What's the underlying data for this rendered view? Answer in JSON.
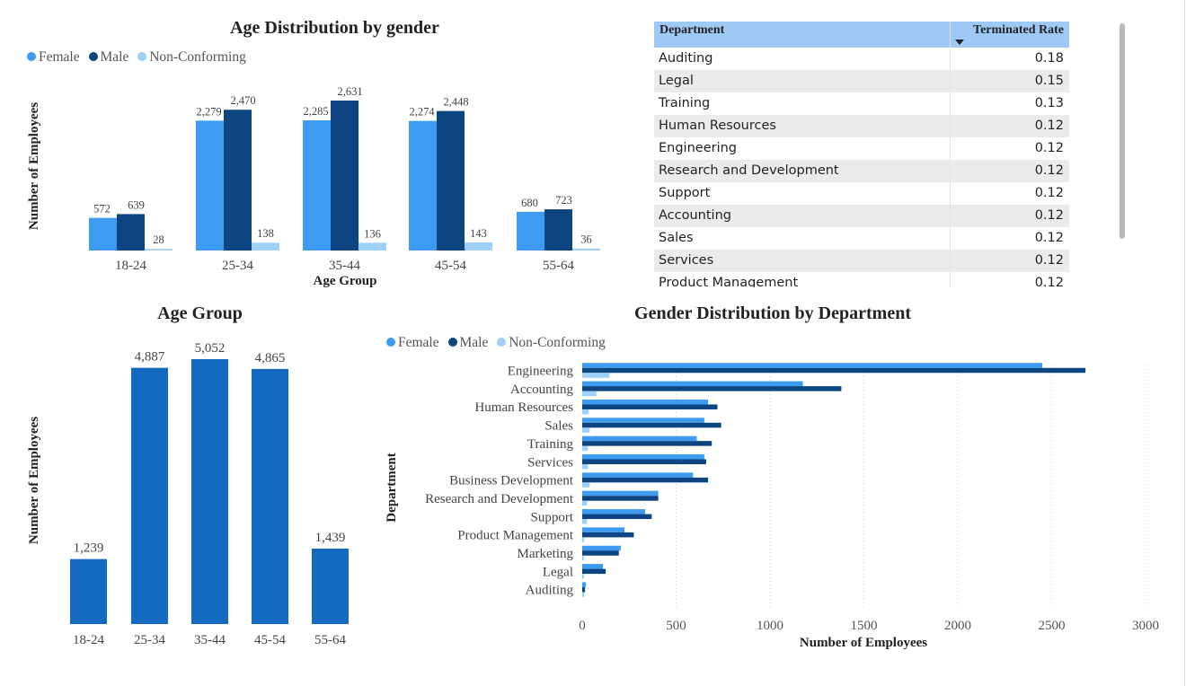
{
  "legend": {
    "female": "Female",
    "male": "Male",
    "nonconforming": "Non-Conforming"
  },
  "colors": {
    "female": "#3d9bf2",
    "male": "#0d4580",
    "nonconforming": "#9fd0fa",
    "single": "#1469c0",
    "header": "#9ec9f5"
  },
  "table": {
    "header": {
      "department": "Department",
      "rate": "Terminated Rate"
    },
    "rows": [
      {
        "department": "Auditing",
        "rate": "0.18"
      },
      {
        "department": "Legal",
        "rate": "0.15"
      },
      {
        "department": "Training",
        "rate": "0.13"
      },
      {
        "department": "Human Resources",
        "rate": "0.12"
      },
      {
        "department": "Engineering",
        "rate": "0.12"
      },
      {
        "department": "Research and Development",
        "rate": "0.12"
      },
      {
        "department": "Support",
        "rate": "0.12"
      },
      {
        "department": "Accounting",
        "rate": "0.12"
      },
      {
        "department": "Sales",
        "rate": "0.12"
      },
      {
        "department": "Services",
        "rate": "0.12"
      },
      {
        "department": "Product Management",
        "rate": "0.12"
      }
    ]
  },
  "chart_data": [
    {
      "type": "bar",
      "title": "Age Distribution by gender",
      "xlabel": "Age Group",
      "ylabel": "Number of Employees",
      "categories": [
        "18-24",
        "25-34",
        "35-44",
        "45-54",
        "55-64"
      ],
      "series": [
        {
          "name": "Female",
          "values": [
            572,
            2279,
            2285,
            2274,
            680
          ],
          "labels": [
            "572",
            "2,279",
            "2,285",
            "2,274",
            "680"
          ]
        },
        {
          "name": "Male",
          "values": [
            639,
            2470,
            2631,
            2448,
            723
          ],
          "labels": [
            "639",
            "2,470",
            "2,631",
            "2,448",
            "723"
          ]
        },
        {
          "name": "Non-Conforming",
          "values": [
            28,
            138,
            136,
            143,
            36
          ],
          "labels": [
            "28",
            "138",
            "136",
            "143",
            "36"
          ]
        }
      ],
      "ylim": [
        0,
        2631
      ]
    },
    {
      "type": "bar",
      "title": "Age Group",
      "xlabel": "",
      "ylabel": "Number of Employees",
      "categories": [
        "18-24",
        "25-34",
        "35-44",
        "45-54",
        "55-64"
      ],
      "values": [
        1239,
        4887,
        5052,
        4865,
        1439
      ],
      "labels": [
        "1,239",
        "4,887",
        "5,052",
        "4,865",
        "1,439"
      ],
      "ylim": [
        0,
        5052
      ]
    },
    {
      "type": "bar",
      "orientation": "horizontal",
      "title": "Gender Distribution by Department",
      "xlabel": "Number of Employees",
      "ylabel": "Department",
      "categories": [
        "Engineering",
        "Accounting",
        "Human Resources",
        "Sales",
        "Training",
        "Services",
        "Business Development",
        "Research and Development",
        "Support",
        "Product Management",
        "Marketing",
        "Legal",
        "Auditing"
      ],
      "series": [
        {
          "name": "Female",
          "values": [
            2450,
            1175,
            670,
            650,
            610,
            650,
            590,
            405,
            335,
            225,
            205,
            110,
            20
          ]
        },
        {
          "name": "Male",
          "values": [
            2680,
            1380,
            720,
            740,
            690,
            660,
            670,
            405,
            370,
            275,
            195,
            125,
            15
          ]
        },
        {
          "name": "Non-Conforming",
          "values": [
            145,
            75,
            35,
            40,
            30,
            30,
            40,
            25,
            25,
            8,
            5,
            5,
            2
          ]
        }
      ],
      "xticks": [
        0,
        500,
        1000,
        1500,
        2000,
        2500,
        3000
      ],
      "xlim": [
        0,
        3000
      ]
    }
  ]
}
